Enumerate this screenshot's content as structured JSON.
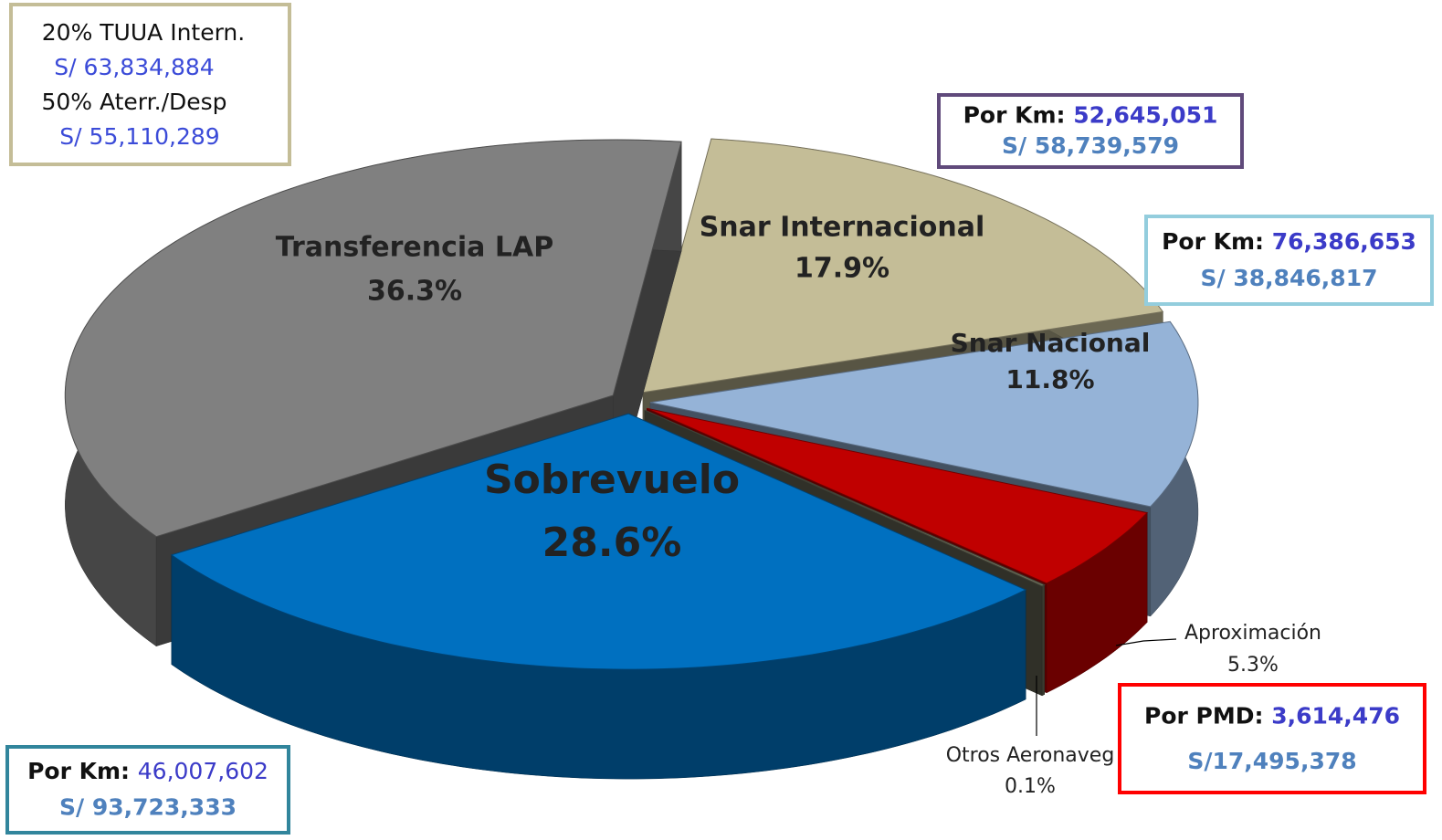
{
  "chart_data": {
    "type": "pie",
    "categories": [
      "Snar Internacional",
      "Snar Nacional",
      "Aproximación",
      "Otros Aeronaveg",
      "Sobrevuelo",
      "Transferencia LAP"
    ],
    "values": [
      17.9,
      11.8,
      5.3,
      0.1,
      28.6,
      36.3
    ],
    "value_labels": [
      "17.9%",
      "11.8%",
      "5.3%",
      "0.1%",
      "28.6%",
      "36.3%"
    ],
    "colors": [
      "#c4bd97",
      "#95b3d7",
      "#c00000",
      "#6b6b58",
      "#0070c0",
      "#808080"
    ],
    "annotations": [
      {
        "lines": [
          "20% TUUA Intern.",
          "S/ 63,834,884",
          "50% Aterr./Desp",
          "S/ 55,110,289"
        ],
        "border": "#c4bd97"
      },
      {
        "heading": "Por Km:",
        "value": "52,645,051",
        "amount": "S/ 58,739,579",
        "border": "#604a7b"
      },
      {
        "heading": "Por Km:",
        "value": "76,386,653",
        "amount": "S/ 38,846,817",
        "border": "#93cddd"
      },
      {
        "heading": "Por PMD:",
        "value": "3,614,476",
        "amount": "S/17,495,378",
        "border": "#ff0000"
      },
      {
        "heading": "Por Km:",
        "value": "46,007,602",
        "amount": "S/ 93,723,333",
        "border": "#31859c"
      }
    ]
  }
}
